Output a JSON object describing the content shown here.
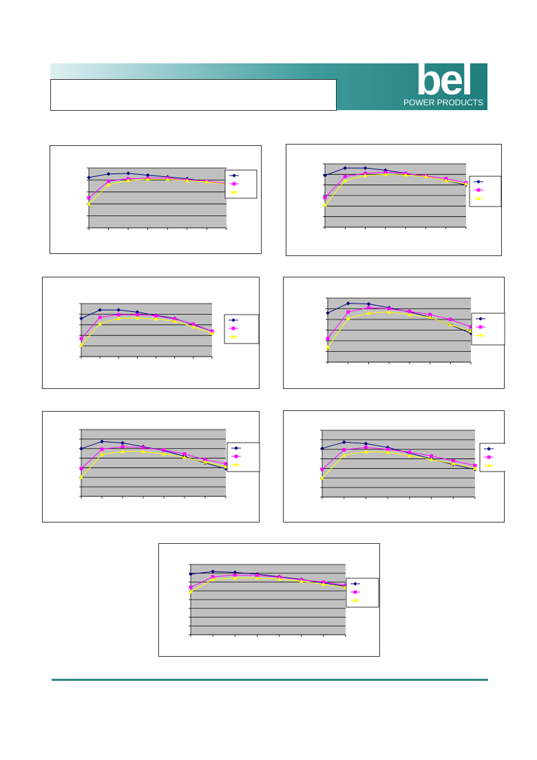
{
  "header": {
    "logo_text": "bel",
    "logo_subtext": "POWER PRODUCTS"
  },
  "colors": {
    "header_start": "#dff0f2",
    "header_end": "#1e7d7b",
    "plot_bg": "#c0c0c0",
    "series1": "#000080",
    "series2": "#ff00ff",
    "series3": "#ffff00",
    "footer_rule": "#2b8a84"
  },
  "chart_data": [
    {
      "type": "line",
      "grid": true,
      "legend": "right",
      "x": [
        0,
        1,
        2,
        3,
        4,
        5,
        6,
        7
      ],
      "ylim": [
        0,
        5
      ],
      "series": [
        {
          "marker": "diamond",
          "values": [
            4.2,
            4.5,
            4.55,
            4.4,
            4.25,
            4.1,
            3.85,
            3.7
          ]
        },
        {
          "marker": "square",
          "values": [
            2.5,
            3.9,
            4.1,
            4.15,
            4.15,
            4.0,
            3.9,
            3.7
          ]
        },
        {
          "marker": "triangle",
          "values": [
            2.0,
            3.6,
            3.95,
            4.05,
            4.05,
            3.95,
            3.85,
            3.65
          ]
        }
      ]
    },
    {
      "type": "line",
      "grid": true,
      "legend": "right",
      "x": [
        0,
        1,
        2,
        3,
        4,
        5,
        6,
        7
      ],
      "ylim": [
        0,
        6
      ],
      "series": [
        {
          "marker": "diamond",
          "values": [
            4.9,
            5.6,
            5.6,
            5.4,
            5.1,
            4.8,
            4.4,
            4.0
          ]
        },
        {
          "marker": "square",
          "values": [
            2.8,
            4.8,
            5.1,
            5.2,
            5.1,
            4.85,
            4.6,
            4.2
          ]
        },
        {
          "marker": "triangle",
          "values": [
            2.1,
            4.4,
            4.9,
            5.0,
            4.95,
            4.8,
            4.4,
            4.1
          ]
        }
      ]
    },
    {
      "type": "line",
      "grid": true,
      "legend": "right",
      "x": [
        0,
        1,
        2,
        3,
        4,
        5,
        6,
        7
      ],
      "ylim": [
        0,
        5
      ],
      "series": [
        {
          "marker": "diamond",
          "values": [
            3.6,
            4.4,
            4.4,
            4.2,
            3.9,
            3.6,
            3.0,
            2.4
          ]
        },
        {
          "marker": "square",
          "values": [
            1.7,
            3.7,
            3.95,
            3.95,
            3.85,
            3.55,
            3.05,
            2.4
          ]
        },
        {
          "marker": "triangle",
          "values": [
            1.1,
            3.1,
            3.6,
            3.65,
            3.55,
            3.35,
            2.8,
            2.2
          ]
        }
      ]
    },
    {
      "type": "line",
      "grid": true,
      "legend": "right",
      "x": [
        0,
        1,
        2,
        3,
        4,
        5,
        6,
        7
      ],
      "ylim": [
        0,
        6
      ],
      "series": [
        {
          "marker": "diamond",
          "values": [
            4.6,
            5.5,
            5.45,
            5.1,
            4.7,
            4.2,
            3.5,
            2.7
          ]
        },
        {
          "marker": "square",
          "values": [
            2.2,
            4.7,
            5.1,
            5.0,
            4.75,
            4.45,
            4.0,
            3.3
          ]
        },
        {
          "marker": "triangle",
          "values": [
            1.4,
            4.1,
            4.6,
            4.7,
            4.45,
            4.2,
            3.5,
            2.9
          ]
        }
      ]
    },
    {
      "type": "line",
      "grid": true,
      "legend": "right",
      "x": [
        0,
        1,
        2,
        3,
        4,
        5,
        6,
        7
      ],
      "ylim": [
        0,
        7
      ],
      "series": [
        {
          "marker": "diamond",
          "values": [
            5.0,
            5.75,
            5.6,
            5.2,
            4.8,
            4.2,
            3.5,
            2.9
          ]
        },
        {
          "marker": "square",
          "values": [
            2.9,
            4.95,
            5.2,
            5.1,
            4.85,
            4.45,
            3.85,
            3.4
          ]
        },
        {
          "marker": "triangle",
          "values": [
            2.0,
            4.4,
            4.7,
            4.7,
            4.45,
            4.1,
            3.6,
            3.1
          ]
        }
      ]
    },
    {
      "type": "line",
      "grid": true,
      "legend": "right",
      "x": [
        0,
        1,
        2,
        3,
        4,
        5,
        6,
        7
      ],
      "ylim": [
        0,
        7
      ],
      "series": [
        {
          "marker": "diamond",
          "values": [
            5.1,
            5.75,
            5.6,
            5.2,
            4.6,
            4.0,
            3.4,
            2.9
          ]
        },
        {
          "marker": "square",
          "values": [
            2.9,
            4.95,
            5.2,
            5.0,
            4.7,
            4.3,
            3.8,
            3.3
          ]
        },
        {
          "marker": "triangle",
          "values": [
            2.0,
            4.4,
            4.75,
            4.7,
            4.35,
            3.95,
            3.5,
            3.0
          ]
        }
      ]
    },
    {
      "type": "line",
      "grid": true,
      "legend": "right",
      "x": [
        0,
        1,
        2,
        3,
        4,
        5,
        6,
        7
      ],
      "ylim": [
        0,
        8
      ],
      "series": [
        {
          "marker": "diamond",
          "values": [
            6.9,
            7.2,
            7.1,
            6.9,
            6.6,
            6.3,
            5.9,
            5.5
          ]
        },
        {
          "marker": "square",
          "values": [
            5.4,
            6.6,
            6.8,
            6.75,
            6.55,
            6.25,
            6.0,
            5.65
          ]
        },
        {
          "marker": "triangle",
          "values": [
            4.9,
            6.3,
            6.45,
            6.45,
            6.35,
            6.1,
            5.75,
            5.4
          ]
        }
      ]
    }
  ]
}
